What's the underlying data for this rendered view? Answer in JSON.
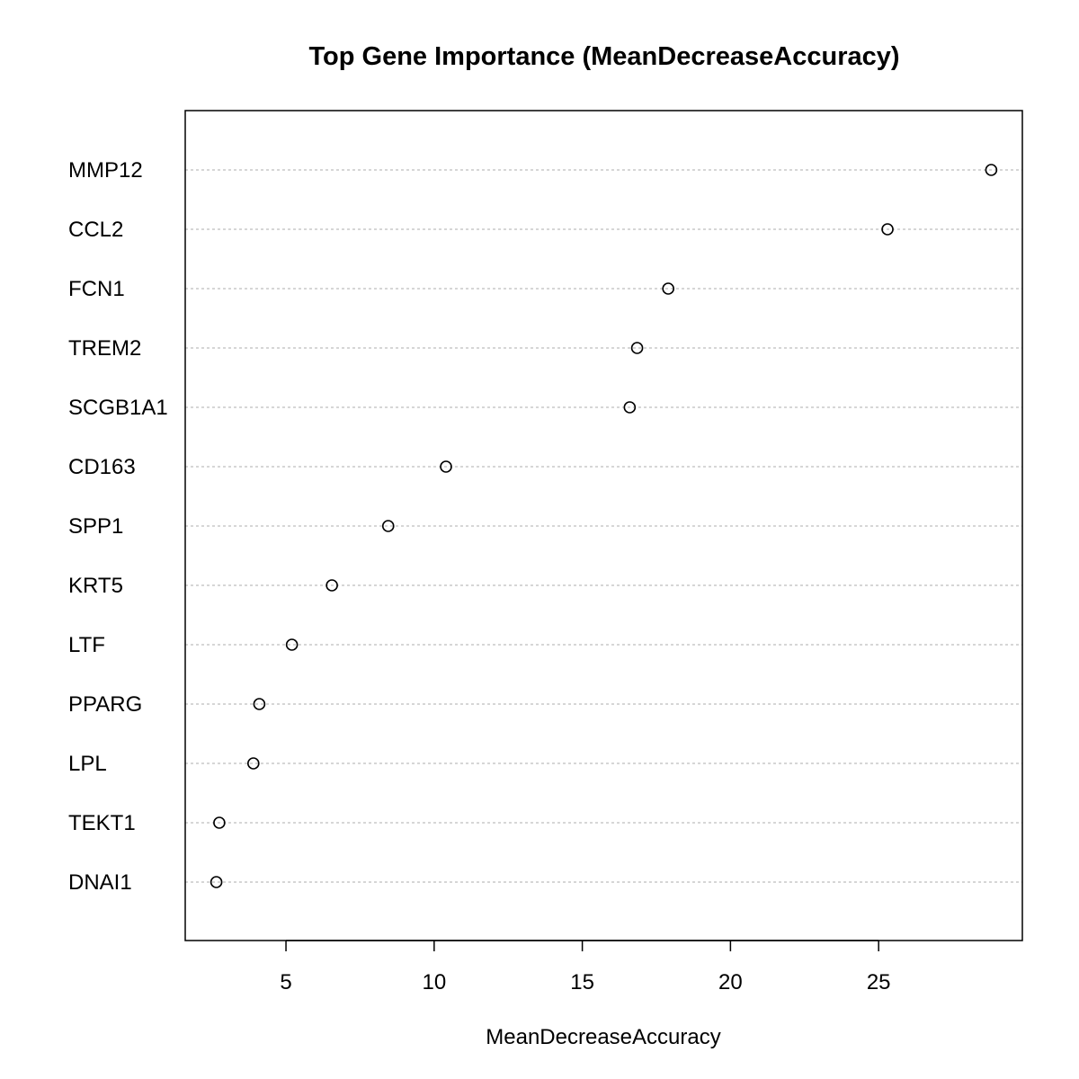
{
  "chart_data": {
    "type": "scatter",
    "title": "Top Gene Importance (MeanDecreaseAccuracy)",
    "xlabel": "MeanDecreaseAccuracy",
    "ylabel": "",
    "categories": [
      "MMP12",
      "CCL2",
      "FCN1",
      "TREM2",
      "SCGB1A1",
      "CD163",
      "SPP1",
      "KRT5",
      "LTF",
      "PPARG",
      "LPL",
      "TEKT1",
      "DNAI1"
    ],
    "values": [
      28.8,
      25.3,
      17.9,
      16.85,
      16.6,
      10.4,
      8.45,
      6.55,
      5.2,
      4.1,
      3.9,
      2.75,
      2.65
    ],
    "xlim": [
      1.6,
      29.85
    ],
    "xticks": [
      5,
      10,
      15,
      20,
      25
    ],
    "grid": "dotted horizontal lines per category",
    "legend": "none",
    "colors": {
      "point_stroke": "#000000",
      "grid": "#bebebe",
      "frame": "#000000"
    }
  }
}
